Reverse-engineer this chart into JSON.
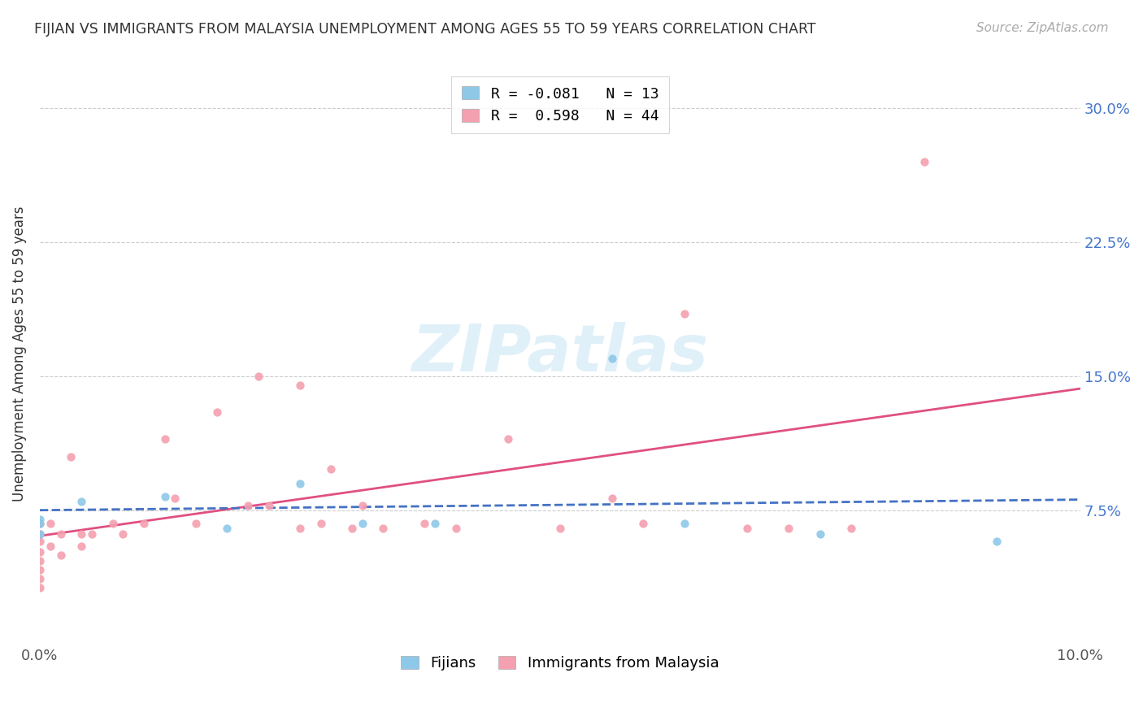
{
  "title": "FIJIAN VS IMMIGRANTS FROM MALAYSIA UNEMPLOYMENT AMONG AGES 55 TO 59 YEARS CORRELATION CHART",
  "source_text": "Source: ZipAtlas.com",
  "ylabel": "Unemployment Among Ages 55 to 59 years",
  "xlim": [
    0.0,
    0.1
  ],
  "ylim": [
    0.0,
    0.325
  ],
  "ytick_positions": [
    0.0,
    0.075,
    0.15,
    0.225,
    0.3
  ],
  "ytick_labels": [
    "",
    "7.5%",
    "15.0%",
    "22.5%",
    "30.0%"
  ],
  "fijians_color": "#8EC8E8",
  "malaysia_color": "#F4A0B0",
  "fijians_line_color": "#4472C4",
  "fijians_line_style": "--",
  "malaysia_line_color": "#E05080",
  "malaysia_line_style": "-",
  "R_fijians": -0.081,
  "N_fijians": 13,
  "R_malaysia": 0.598,
  "N_malaysia": 44,
  "legend_label_fijians": "Fijians",
  "legend_label_malaysia": "Immigrants from Malaysia",
  "watermark_text": "ZIPatlas",
  "fijians_x": [
    0.0,
    0.0,
    0.0,
    0.004,
    0.012,
    0.018,
    0.025,
    0.031,
    0.038,
    0.055,
    0.062,
    0.075,
    0.092
  ],
  "fijians_y": [
    0.07,
    0.068,
    0.062,
    0.08,
    0.083,
    0.065,
    0.09,
    0.068,
    0.068,
    0.16,
    0.068,
    0.062,
    0.058
  ],
  "malaysia_x": [
    0.0,
    0.0,
    0.0,
    0.0,
    0.0,
    0.0,
    0.0,
    0.0,
    0.001,
    0.001,
    0.002,
    0.002,
    0.003,
    0.004,
    0.004,
    0.005,
    0.007,
    0.008,
    0.01,
    0.012,
    0.013,
    0.015,
    0.017,
    0.02,
    0.021,
    0.022,
    0.025,
    0.025,
    0.027,
    0.028,
    0.03,
    0.031,
    0.033,
    0.037,
    0.04,
    0.045,
    0.05,
    0.055,
    0.058,
    0.062,
    0.068,
    0.072,
    0.078,
    0.085
  ],
  "malaysia_y": [
    0.068,
    0.062,
    0.058,
    0.052,
    0.047,
    0.042,
    0.037,
    0.032,
    0.055,
    0.068,
    0.062,
    0.05,
    0.105,
    0.062,
    0.055,
    0.062,
    0.068,
    0.062,
    0.068,
    0.115,
    0.082,
    0.068,
    0.13,
    0.078,
    0.15,
    0.078,
    0.065,
    0.145,
    0.068,
    0.098,
    0.065,
    0.078,
    0.065,
    0.068,
    0.065,
    0.115,
    0.065,
    0.082,
    0.068,
    0.185,
    0.065,
    0.065,
    0.065,
    0.27
  ]
}
